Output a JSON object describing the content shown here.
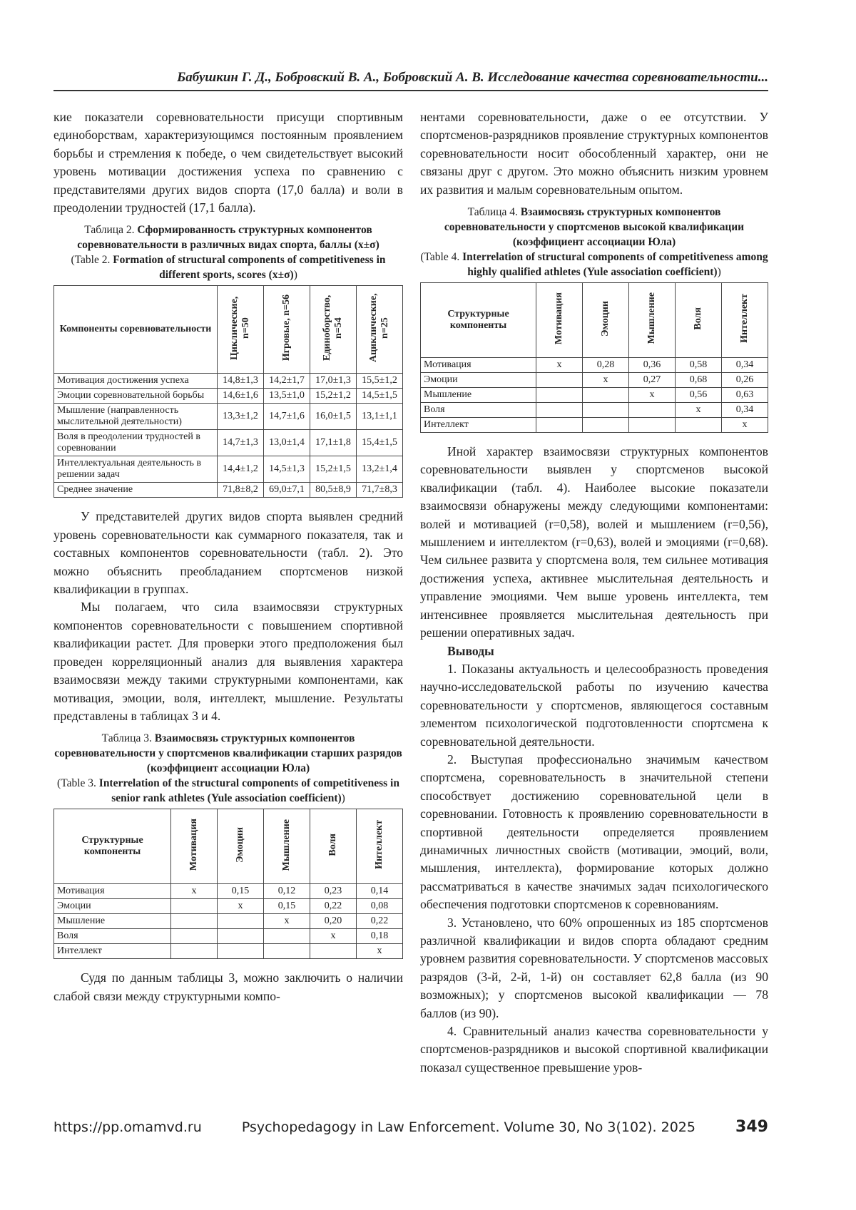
{
  "header": {
    "title": "Бабушкин Г. Д., Бобровский В. А., Бобровский А. В. Исследование качества соревновательности..."
  },
  "left": {
    "p1": "кие показатели соревновательности присущи спортивным единоборствам, характеризующимся постоянным проявлением борьбы и стремления к победе, о чем свидетельствует высокий уровень мотивации достижения успеха по сравнению с представителями других видов спорта (17,0 балла) и воли в преодолении трудностей (17,1 балла).",
    "p2": "У представителей других видов спорта выявлен средний уровень соревновательности как суммарного показателя, так и составных компонентов соревновательности (табл. 2). Это можно объяснить преобладанием спортсменов низкой квалификации в группах.",
    "p3": "Мы полагаем, что сила взаимосвязи структурных компонентов соревновательности с повышением спортивной квалификации растет. Для проверки этого предположения был проведен корреляционный анализ для выявления характера взаимосвязи между такими структурными компонентами, как мотивация, эмоции, воля, интеллект, мышление. Результаты представлены в таблицах 3 и 4.",
    "p4": "Судя по данным таблицы 3, можно заключить о наличии слабой связи между структурными компо-"
  },
  "table2": {
    "label_ru": "Таблица 2.",
    "title_ru": "Сформированность структурных компонентов соревновательности в различных видах спорта, баллы (x±σ)",
    "label_en": "(Table 2.",
    "title_en": "Formation of structural components of competitiveness in different sports, scores (x±σ)",
    "close": ")",
    "header": [
      "Компоненты соревновательности",
      "Циклические, n=50",
      "Игровые, n=56",
      "Единоборство, n=54",
      "Ациклические, n=25"
    ],
    "rows": [
      [
        "Мотивация достижения успеха",
        "14,8±1,3",
        "14,2±1,7",
        "17,0±1,3",
        "15,5±1,2"
      ],
      [
        "Эмоции соревновательной борьбы",
        "14,6±1,6",
        "13,5±1,0",
        "15,2±1,2",
        "14,5±1,5"
      ],
      [
        "Мышление (направленность мыслительной деятельности)",
        "13,3±1,2",
        "14,7±1,6",
        "16,0±1,5",
        "13,1±1,1"
      ],
      [
        "Воля в преодолении трудностей в соревновании",
        "14,7±1,3",
        "13,0±1,4",
        "17,1±1,8",
        "15,4±1,5"
      ],
      [
        "Интеллектуальная деятельность в решении задач",
        "14,4±1,2",
        "14,5±1,3",
        "15,2±1,5",
        "13,2±1,4"
      ],
      [
        "Среднее значение",
        "71,8±8,2",
        "69,0±7,1",
        "80,5±8,9",
        "71,7±8,3"
      ]
    ]
  },
  "table3": {
    "label_ru": "Таблица 3.",
    "title_ru": "Взаимосвязь структурных компонентов соревновательности у спортсменов квалификации старших разрядов (коэффициент ассоциации Юла)",
    "label_en": "(Table 3.",
    "title_en": "Interrelation of the structural components of competitiveness in senior rank athletes (Yule association coefficient)",
    "close": ")",
    "header": [
      "Структурные компоненты",
      "Мотивация",
      "Эмоции",
      "Мышление",
      "Воля",
      "Интеллект"
    ],
    "rows": [
      [
        "Мотивация",
        "x",
        "0,15",
        "0,12",
        "0,23",
        "0,14"
      ],
      [
        "Эмоции",
        null,
        "x",
        "0,15",
        "0,22",
        "0,08"
      ],
      [
        "Мышление",
        null,
        null,
        "x",
        "0,20",
        "0,22"
      ],
      [
        "Воля",
        null,
        null,
        null,
        "x",
        "0,18"
      ],
      [
        "Интеллект",
        null,
        null,
        null,
        null,
        "x"
      ]
    ]
  },
  "right": {
    "p1": "нентами соревновательности, даже о ее отсутствии. У спортсменов-разрядников проявление структурных компонентов соревновательности носит обособленный характер, они не связаны друг с другом. Это можно объяснить низким уровнем их развития и малым соревновательным опытом.",
    "p2": "Иной характер взаимосвязи структурных компонентов соревновательности выявлен у спортсменов высокой квалификации (табл. 4). Наиболее высокие показатели взаимосвязи обнаружены между следующими компонентами: волей и мотивацией (r=0,58), волей и мышлением (r=0,56), мышлением и интеллектом (r=0,63), волей и эмоциями (r=0,68). Чем сильнее развита у спортсмена воля, тем сильнее мотивация достижения успеха, активнее мыслительная деятельность и управление эмоциями. Чем выше уровень интеллекта, тем интенсивнее проявляется мыслительная деятельность при решении оперативных задач.",
    "heading": "Выводы",
    "c1": "1. Показаны актуальность и целесообразность проведения научно-исследовательской работы по изучению качества соревновательности у спортсменов, являющегося составным элементом психологической подготовленности спортсмена к соревновательной деятельности.",
    "c2": "2. Выступая профессионально значимым качеством спортсмена, соревновательность в значительной степени способствует достижению соревновательной цели в соревновании. Готовность к проявлению соревновательности в спортивной деятельности определяется проявлением динамичных личностных свойств (мотивации, эмоций, воли, мышления, интеллекта), формирование которых должно рассматриваться в качестве значимых задач психологического обеспечения подготовки спортсменов к соревнованиям.",
    "c3": "3. Установлено, что 60% опрошенных из 185 спортсменов различной квалификации и видов спорта обладают средним уровнем развития соревновательности. У спортсменов массовых разрядов (3-й, 2-й, 1-й) он составляет 62,8 балла (из 90 возможных); у спортсменов высокой квалификации — 78 баллов (из 90).",
    "c4": "4. Сравнительный анализ качества соревновательности у спортсменов-разрядников и высокой спортивной квалификации показал существенное превышение уров-"
  },
  "table4": {
    "label_ru": "Таблица 4.",
    "title_ru": "Взаимосвязь структурных компонентов соревновательности у спортсменов высокой квалификации (коэффициент ассоциации Юла)",
    "label_en": "(Table 4.",
    "title_en": "Interrelation of structural components of competitiveness among highly qualified athletes (Yule association coefficient)",
    "close": ")",
    "header": [
      "Структурные компоненты",
      "Мотивация",
      "Эмоции",
      "Мышление",
      "Воля",
      "Интеллект"
    ],
    "rows": [
      [
        "Мотивация",
        "x",
        "0,28",
        "0,36",
        "0,58",
        "0,34"
      ],
      [
        "Эмоции",
        null,
        "x",
        "0,27",
        "0,68",
        "0,26"
      ],
      [
        "Мышление",
        null,
        null,
        "x",
        "0,56",
        "0,63"
      ],
      [
        "Воля",
        null,
        null,
        null,
        "x",
        "0,34"
      ],
      [
        "Интеллект",
        null,
        null,
        null,
        null,
        "x"
      ]
    ]
  },
  "footer": {
    "url": "https://pp.omamvd.ru",
    "journal": "Psychopedagogy in Law Enforcement. Volume 30, No 3(102). 2025",
    "page": "349"
  }
}
